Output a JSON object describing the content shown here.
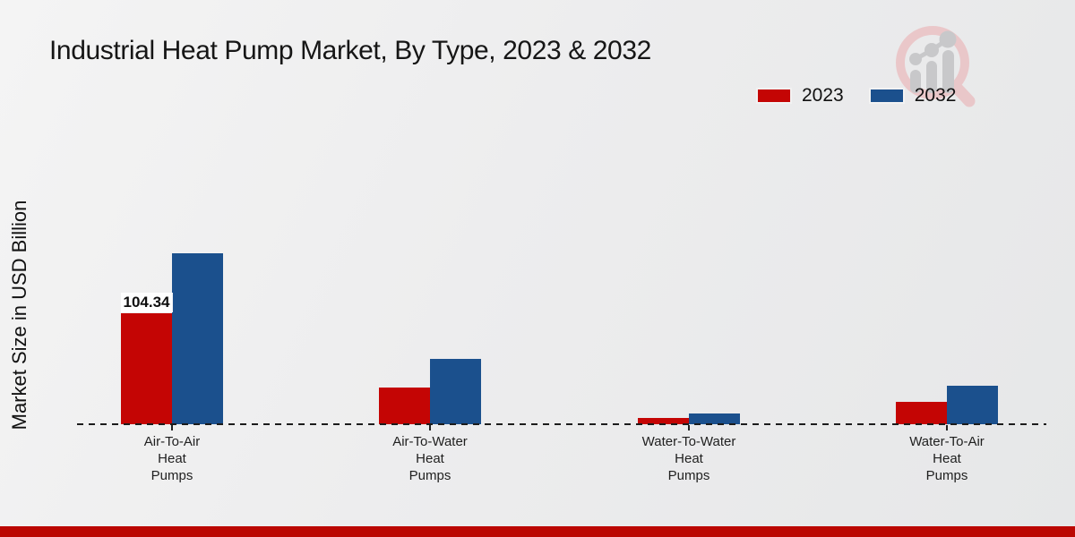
{
  "title": "Industrial Heat Pump Market, By Type, 2023 & 2032",
  "y_axis_label": "Market Size in USD Billion",
  "legend": {
    "items": [
      {
        "label": "2023",
        "color": "#c40504"
      },
      {
        "label": "2032",
        "color": "#1b508d"
      }
    ]
  },
  "watermark_icon": "magnifier-growth-chart-logo",
  "footer": {
    "band_color": "#bb0701"
  },
  "chart_data": {
    "type": "bar",
    "categories": [
      "Air-To-Air Heat Pumps",
      "Air-To-Water Heat Pumps",
      "Water-To-Water Heat Pumps",
      "Water-To-Air Heat Pumps"
    ],
    "category_label_lines": [
      [
        "Air-To-Air",
        "Heat",
        "Pumps"
      ],
      [
        "Air-To-Water",
        "Heat",
        "Pumps"
      ],
      [
        "Water-To-Water",
        "Heat",
        "Pumps"
      ],
      [
        "Water-To-Air",
        "Heat",
        "Pumps"
      ]
    ],
    "series": [
      {
        "name": "2023",
        "color": "#c40504",
        "values": [
          104.34,
          34.8,
          5.8,
          20.9
        ]
      },
      {
        "name": "2032",
        "color": "#1b508d",
        "values": [
          160.5,
          61.3,
          10.1,
          36.1
        ]
      }
    ],
    "value_labels": [
      {
        "series_index": 0,
        "category_index": 0,
        "text": "104.34"
      }
    ],
    "title": "Industrial Heat Pump Market, By Type, 2023 & 2032",
    "xlabel": "",
    "ylabel": "Market Size in USD Billion",
    "ylim": [
      0,
      170
    ],
    "grid": false,
    "legend_position": "top-right",
    "baseline_style": "dashed"
  }
}
